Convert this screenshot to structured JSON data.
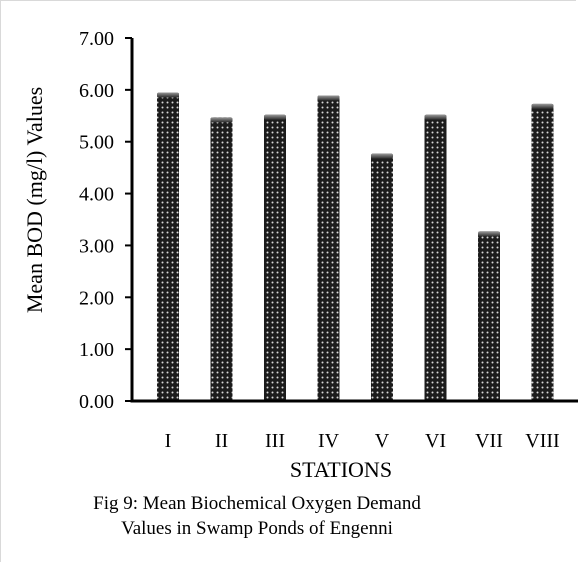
{
  "chart_data": {
    "type": "bar",
    "categories": [
      "I",
      "II",
      "III",
      "IV",
      "V",
      "VI",
      "VII",
      "VIII"
    ],
    "values": [
      5.95,
      5.47,
      5.52,
      5.89,
      4.77,
      5.52,
      3.27,
      5.73
    ],
    "title": "",
    "xlabel": "STATIONS",
    "ylabel": "Mean BOD (mg/l) Values",
    "ylim": [
      0,
      7
    ],
    "yticks": [
      "0.00",
      "1.00",
      "2.00",
      "3.00",
      "4.00",
      "5.00",
      "6.00",
      "7.00"
    ],
    "grid": false,
    "legend": "none",
    "bar_color": "#1a1a1a",
    "bar_pattern": "dotted"
  },
  "caption": {
    "line1": "Fig 9: Mean Biochemical Oxygen Demand",
    "line2": "Values in Swamp Ponds of Engenni"
  }
}
